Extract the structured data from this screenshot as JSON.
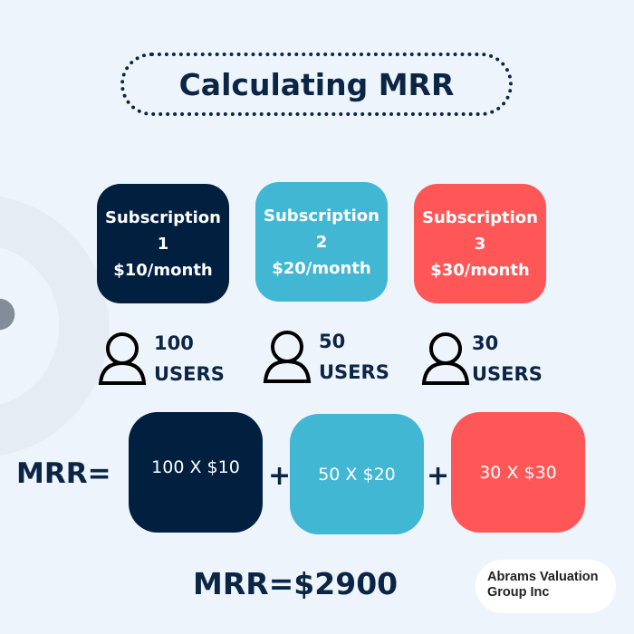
{
  "title": "Calculating MRR",
  "colors": {
    "navy": "#011f3f",
    "cyan": "#42b7d4",
    "coral": "#ff5757"
  },
  "subscriptions": [
    {
      "name": "Subscription",
      "number": "1",
      "price": "$10/month",
      "users": "100",
      "users_label": "USERS",
      "formula": "100 X $10"
    },
    {
      "name": "Subscription",
      "number": "2",
      "price": "$20/month",
      "users": "50",
      "users_label": "USERS",
      "formula": "50 X $20"
    },
    {
      "name": "Subscription",
      "number": "3",
      "price": "$30/month",
      "users": "30",
      "users_label": "USERS",
      "formula": "30 X $30"
    }
  ],
  "mrr_label": "MRR=",
  "plus": "+",
  "total": "MRR=$2900",
  "logo": {
    "line1": "Abrams Valuation",
    "line2": "Group Inc"
  }
}
